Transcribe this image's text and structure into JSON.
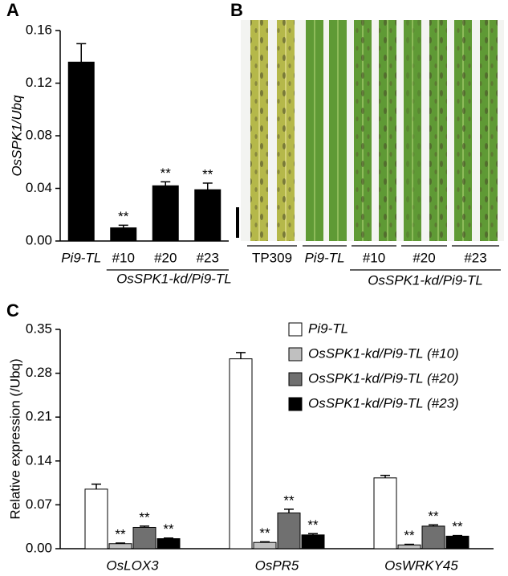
{
  "chart_data": [
    {
      "type": "bar",
      "panel": "A",
      "ylabel": "OsSPK1/Ubq",
      "categories": [
        "Pi9-TL",
        "#10",
        "#20",
        "#23"
      ],
      "group_label": "OsSPK1-kd/Pi9-TL",
      "values": [
        0.136,
        0.01,
        0.042,
        0.039
      ],
      "errors": [
        0.014,
        0.002,
        0.003,
        0.005
      ],
      "significance": [
        null,
        "**",
        "**",
        "**"
      ],
      "color": "#000000",
      "ylim": [
        0,
        0.16
      ],
      "yticks": [
        {
          "value": 0,
          "label": "0.00"
        },
        0.04,
        0.08,
        0.12,
        0.16
      ]
    },
    {
      "type": "bar",
      "panel": "C",
      "ylabel": "Relative expression (/Ubq)",
      "categories": [
        "OsLOX3",
        "OsPR5",
        "OsWRKY45"
      ],
      "series": [
        {
          "name": "Pi9-TL",
          "color": "#ffffff",
          "values": [
            0.095,
            0.303,
            0.113
          ],
          "errors": [
            0.008,
            0.01,
            0.004
          ],
          "significance": [
            null,
            null,
            null
          ]
        },
        {
          "name": "OsSPK1-kd/Pi9-TL (#10)",
          "color": "#c0c0c0",
          "values": [
            0.008,
            0.01,
            0.006
          ],
          "errors": [
            0.001,
            0.001,
            0.001
          ],
          "significance": [
            "**",
            "**",
            "**"
          ]
        },
        {
          "name": "OsSPK1-kd/Pi9-TL (#20)",
          "color": "#707070",
          "values": [
            0.034,
            0.057,
            0.036
          ],
          "errors": [
            0.002,
            0.006,
            0.002
          ],
          "significance": [
            "**",
            "**",
            "**"
          ]
        },
        {
          "name": "OsSPK1-kd/Pi9-TL (#23)",
          "color": "#000000",
          "values": [
            0.016,
            0.022,
            0.02
          ],
          "errors": [
            0.001,
            0.002,
            0.001
          ],
          "significance": [
            "**",
            "**",
            "**"
          ]
        }
      ],
      "ylim": [
        0,
        0.35
      ],
      "yticks": [
        {
          "value": 0,
          "label": "0.00"
        },
        0.07,
        0.14,
        0.21,
        0.28,
        0.35
      ]
    }
  ],
  "panel_b": {
    "label": "B",
    "samples": [
      "TP309",
      "Pi9-TL",
      "#10",
      "#20",
      "#23"
    ],
    "group_label": "OsSPK1-kd/Pi9-TL"
  }
}
